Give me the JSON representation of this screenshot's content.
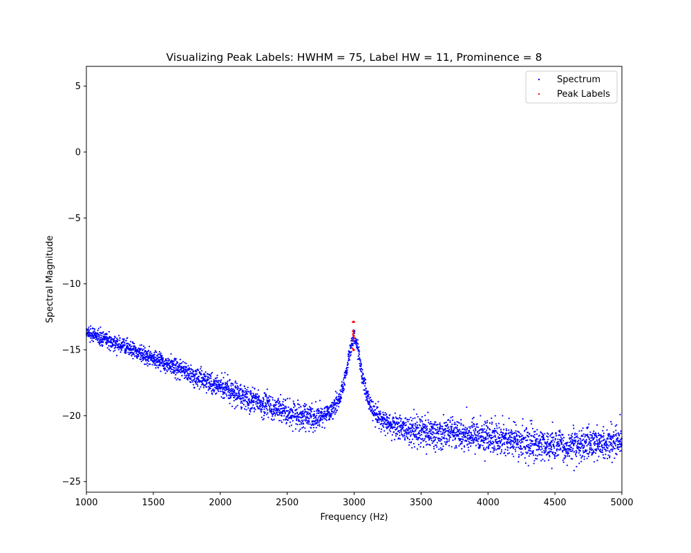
{
  "chart_data": {
    "type": "scatter",
    "title": "Visualizing Peak Labels: HWHM = 75, Label HW = 11, Prominence = 8",
    "xlabel": "Frequency (Hz)",
    "ylabel": "Spectral Magnitude",
    "xlim": [
      1000,
      5000
    ],
    "ylim": [
      -25.8,
      6.5
    ],
    "xticks": [
      1000,
      1500,
      2000,
      2500,
      3000,
      3500,
      4000,
      4500,
      5000
    ],
    "yticks": [
      -25,
      -20,
      -15,
      -10,
      -5,
      0,
      5
    ],
    "grid": false,
    "legend_position": "top-right",
    "series": [
      {
        "name": "Spectrum",
        "color": "#0000ff",
        "point_count": 4000,
        "x_range": [
          1000,
          5000
        ],
        "model": "decaying baseline with Lorentzian peak plus noise",
        "baseline_curve": [
          {
            "x": 1000,
            "y": -13.7
          },
          {
            "x": 1500,
            "y": -15.6
          },
          {
            "x": 2000,
            "y": -17.9
          },
          {
            "x": 2500,
            "y": -19.9
          },
          {
            "x": 2700,
            "y": -20.6
          },
          {
            "x": 3200,
            "y": -21.1
          },
          {
            "x": 3500,
            "y": -21.3
          },
          {
            "x": 4000,
            "y": -21.6
          },
          {
            "x": 4500,
            "y": -22.3
          },
          {
            "x": 5000,
            "y": -21.9
          }
        ],
        "peak": {
          "center": 3000,
          "hwhm": 75,
          "height": 6.8
        },
        "noise_sd": [
          {
            "x": 1000,
            "y": 0.25
          },
          {
            "x": 2000,
            "y": 0.4
          },
          {
            "x": 2500,
            "y": 0.5
          },
          {
            "x": 3000,
            "y": 0.3
          },
          {
            "x": 3500,
            "y": 0.6
          },
          {
            "x": 5000,
            "y": 0.6
          }
        ]
      },
      {
        "name": "Peak Labels",
        "color": "#ff0000",
        "points": [
          {
            "x": 2989,
            "y": -12.9
          },
          {
            "x": 2992,
            "y": -12.9
          },
          {
            "x": 2995,
            "y": -12.85
          },
          {
            "x": 2998,
            "y": -12.85
          },
          {
            "x": 3001,
            "y": -12.9
          },
          {
            "x": 2989,
            "y": -13.6
          },
          {
            "x": 2991,
            "y": -13.8
          },
          {
            "x": 2993,
            "y": -13.9
          },
          {
            "x": 2995,
            "y": -14.0
          },
          {
            "x": 2997,
            "y": -13.7
          },
          {
            "x": 2999,
            "y": -13.95
          },
          {
            "x": 3000,
            "y": -14.1
          },
          {
            "x": 2994,
            "y": -14.3
          },
          {
            "x": 2996,
            "y": -13.5
          },
          {
            "x": 2992,
            "y": -15.0
          },
          {
            "x": 2995,
            "y": -15.05
          },
          {
            "x": 2998,
            "y": -15.0
          },
          {
            "x": 3001,
            "y": -15.0
          },
          {
            "x": 2990,
            "y": -14.9
          }
        ]
      }
    ]
  }
}
